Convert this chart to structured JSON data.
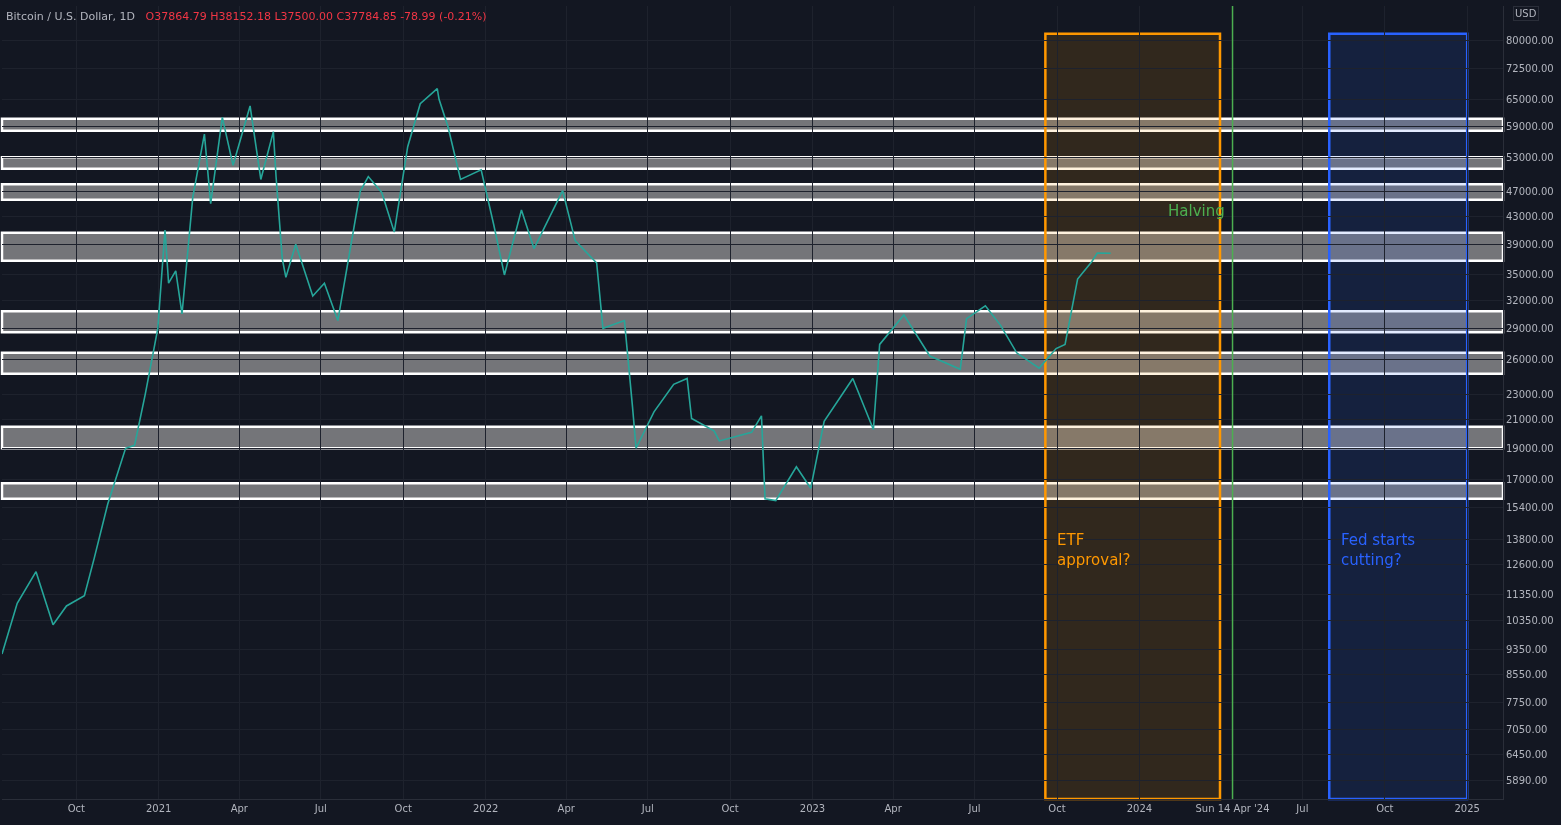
{
  "chart_data": {
    "type": "line",
    "title": "Bitcoin / U.S. Dollar, 1D",
    "subtitle": "O37864.79 H38152.18 L37500.00 C37784.85 -78.99 (-0.21%)",
    "ylabel": "USD",
    "log": "y",
    "grid": true,
    "marker": "none",
    "line_style": "solid",
    "series": [
      {
        "color": "#26a69a",
        "x": [
          "2020-07-10",
          "2020-07-27",
          "2020-08-17",
          "2020-09-05",
          "2020-09-20",
          "2020-10-10",
          "2020-10-21",
          "2020-11-05",
          "2020-11-25",
          "2020-12-05",
          "2020-12-17",
          "2020-12-31",
          "2021-01-08",
          "2021-01-12",
          "2021-01-20",
          "2021-01-27",
          "2021-02-08",
          "2021-02-21",
          "2021-02-28",
          "2021-03-13",
          "2021-03-25",
          "2021-04-13",
          "2021-04-25",
          "2021-05-09",
          "2021-05-12",
          "2021-05-19",
          "2021-05-23",
          "2021-06-03",
          "2021-06-22",
          "2021-07-05",
          "2021-07-20",
          "2021-08-14",
          "2021-08-23",
          "2021-09-07",
          "2021-09-21",
          "2021-10-06",
          "2021-10-20",
          "2021-11-08",
          "2021-11-10",
          "2021-11-20",
          "2021-12-04",
          "2021-12-27",
          "2022-01-10",
          "2022-01-22",
          "2022-02-10",
          "2022-02-24",
          "2022-03-28",
          "2022-04-11",
          "2022-05-05",
          "2022-05-12",
          "2022-06-05",
          "2022-06-14",
          "2022-06-18",
          "2022-07-08",
          "2022-07-30",
          "2022-08-14",
          "2022-08-19",
          "2022-09-13",
          "2022-09-19",
          "2022-10-25",
          "2022-11-05",
          "2022-11-09",
          "2022-11-21",
          "2022-12-14",
          "2022-12-30",
          "2023-01-14",
          "2023-02-15",
          "2023-03-10",
          "2023-03-17",
          "2023-04-13",
          "2023-05-12",
          "2023-06-15",
          "2023-06-22",
          "2023-07-13",
          "2023-07-30",
          "2023-08-17",
          "2023-09-11",
          "2023-09-30",
          "2023-10-10",
          "2023-10-24",
          "2023-11-09",
          "2023-11-15",
          "2023-11-30"
        ],
        "values": [
          9200,
          11000,
          12300,
          10200,
          10900,
          11300,
          12900,
          15600,
          19000,
          19200,
          23000,
          29000,
          41000,
          34000,
          35500,
          30500,
          46000,
          57500,
          45000,
          61000,
          51500,
          63500,
          49000,
          58000,
          49500,
          37000,
          34700,
          39000,
          32500,
          34000,
          29800,
          47000,
          49500,
          46800,
          40700,
          55000,
          64000,
          67500,
          65000,
          59000,
          49000,
          50700,
          41800,
          35000,
          44000,
          38400,
          47100,
          39500,
          36500,
          29000,
          29800,
          22000,
          19000,
          21600,
          23800,
          24300,
          21100,
          20200,
          19500,
          20100,
          21300,
          15900,
          15800,
          17800,
          16500,
          20900,
          24300,
          20300,
          27400,
          30400,
          26300,
          25100,
          30000,
          31400,
          29300,
          26600,
          25200,
          27000,
          27400,
          34500,
          36700,
          37800,
          37784.85
        ]
      }
    ],
    "xlim": [
      "2020-07-10",
      "2025-02-10"
    ],
    "xticks": [
      {
        "value": "2020-10-01",
        "label": "Oct"
      },
      {
        "value": "2021-01-01",
        "label": "2021"
      },
      {
        "value": "2021-04-01",
        "label": "Apr"
      },
      {
        "value": "2021-07-01",
        "label": "Jul"
      },
      {
        "value": "2021-10-01",
        "label": "Oct"
      },
      {
        "value": "2022-01-01",
        "label": "2022"
      },
      {
        "value": "2022-04-01",
        "label": "Apr"
      },
      {
        "value": "2022-07-01",
        "label": "Jul"
      },
      {
        "value": "2022-10-01",
        "label": "Oct"
      },
      {
        "value": "2023-01-01",
        "label": "2023"
      },
      {
        "value": "2023-04-01",
        "label": "Apr"
      },
      {
        "value": "2023-07-01",
        "label": "Jul"
      },
      {
        "value": "2023-10-01",
        "label": "Oct"
      },
      {
        "value": "2024-01-01",
        "label": "2024"
      },
      {
        "value": "2024-04-14",
        "label": "Sun 14 Apr '24"
      },
      {
        "value": "2024-07-01",
        "label": "Jul"
      },
      {
        "value": "2024-10-01",
        "label": "Oct"
      },
      {
        "value": "2025-01-01",
        "label": "2025"
      }
    ],
    "ylim": [
      5520,
      90300
    ],
    "yticks": [
      {
        "value": 80000,
        "label": "80000.00"
      },
      {
        "value": 72500,
        "label": "72500.00"
      },
      {
        "value": 65000,
        "label": "65000.00"
      },
      {
        "value": 59000,
        "label": "59000.00"
      },
      {
        "value": 53000,
        "label": "53000.00"
      },
      {
        "value": 47000,
        "label": "47000.00"
      },
      {
        "value": 43000,
        "label": "43000.00"
      },
      {
        "value": 39000,
        "label": "39000.00"
      },
      {
        "value": 35000,
        "label": "35000.00"
      },
      {
        "value": 32000,
        "label": "32000.00"
      },
      {
        "value": 29000,
        "label": "29000.00"
      },
      {
        "value": 26000,
        "label": "26000.00"
      },
      {
        "value": 23000,
        "label": "23000.00"
      },
      {
        "value": 21000,
        "label": "21000.00"
      },
      {
        "value": 19000,
        "label": "19000.00"
      },
      {
        "value": 17000,
        "label": "17000.00"
      },
      {
        "value": 15400,
        "label": "15400.00"
      },
      {
        "value": 13800,
        "label": "13800.00"
      },
      {
        "value": 12600,
        "label": "12600.00"
      },
      {
        "value": 11350,
        "label": "11350.00"
      },
      {
        "value": 10350,
        "label": "10350.00"
      },
      {
        "value": 9350,
        "label": "9350.00"
      },
      {
        "value": 8550,
        "label": "8550.00"
      },
      {
        "value": 7750,
        "label": "7750.00"
      },
      {
        "value": 7050,
        "label": "7050.00"
      },
      {
        "value": 6450,
        "label": "6450.00"
      },
      {
        "value": 5890,
        "label": "5890.00"
      }
    ],
    "bands": [
      {
        "axis": "y",
        "from": 58200,
        "to": 60700,
        "color": "#9e9e9e"
      },
      {
        "axis": "y",
        "from": 50900,
        "to": 53000,
        "color": "#9e9e9e"
      },
      {
        "axis": "y",
        "from": 45600,
        "to": 48200,
        "color": "#9e9e9e"
      },
      {
        "axis": "y",
        "from": 36800,
        "to": 40600,
        "color": "#9e9e9e"
      },
      {
        "axis": "y",
        "from": 28600,
        "to": 30800,
        "color": "#9e9e9e"
      },
      {
        "axis": "y",
        "from": 24700,
        "to": 26600,
        "color": "#9e9e9e"
      },
      {
        "axis": "y",
        "from": 19000,
        "to": 20500,
        "color": "#9e9e9e"
      },
      {
        "axis": "y",
        "from": 15900,
        "to": 16800,
        "color": "#9e9e9e"
      },
      {
        "axis": "x",
        "from": "2023-09-18",
        "to": "2024-03-31",
        "label": "ETF approval?",
        "color": "#ff9800"
      },
      {
        "axis": "x",
        "from": "2024-07-31",
        "to": "2025-01-01",
        "label": "Fed starts cutting?",
        "color": "#2962ff"
      }
    ],
    "ref_lines": [
      {
        "axis": "x",
        "value": "2024-04-14",
        "label": "Halving",
        "color": "#4caf50",
        "line_style": "solid"
      }
    ]
  }
}
